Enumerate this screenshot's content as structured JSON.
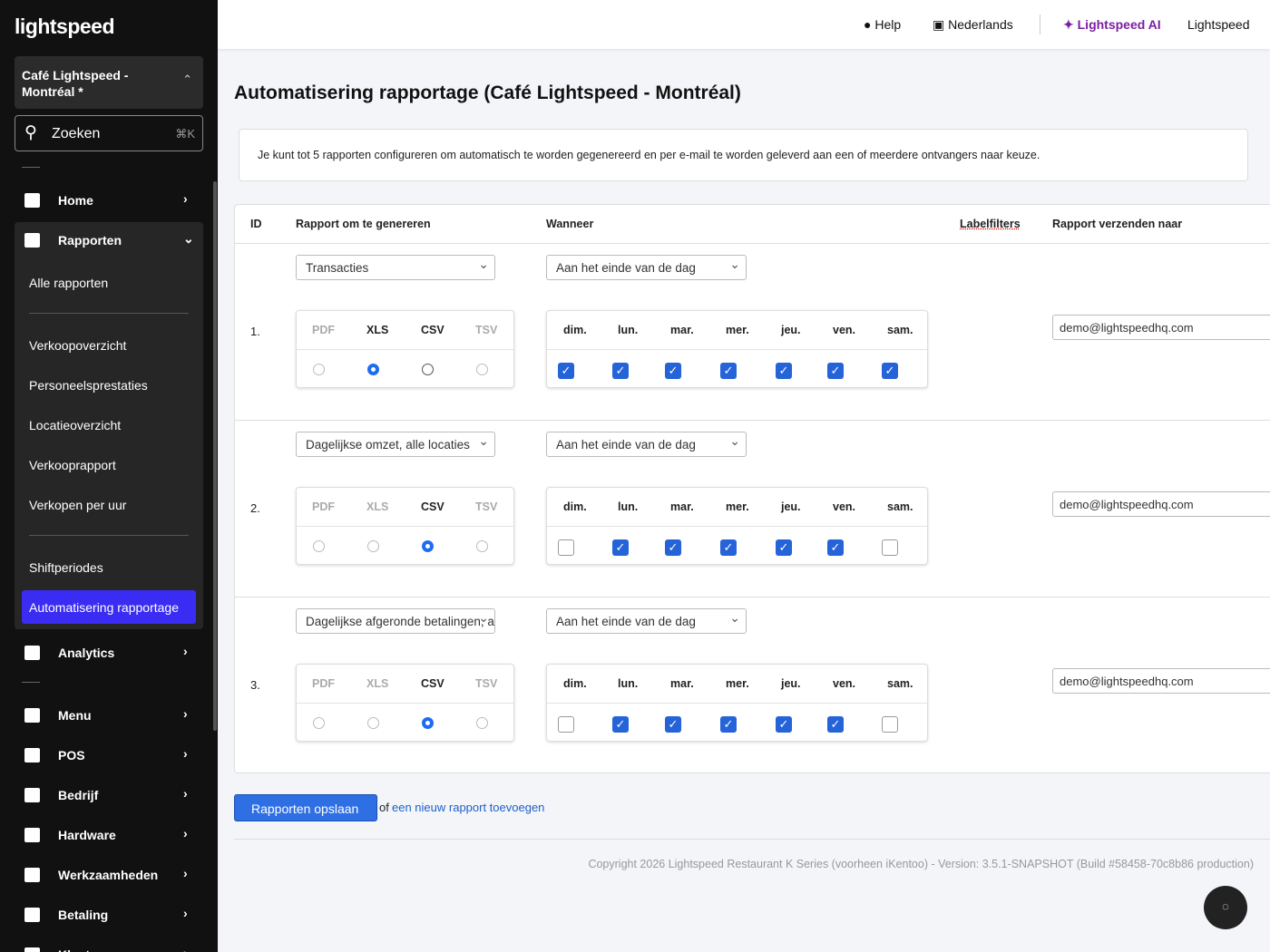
{
  "header": {
    "help": "Help",
    "language": "Nederlands",
    "ai": "Lightspeed AI",
    "account": "Lightspeed"
  },
  "sidebar": {
    "brand": "lightspeed",
    "location": "Café Lightspeed - Montréal *",
    "search": "Zoeken",
    "shortcut": "⌘K",
    "nav": [
      [
        {
          "label": "Home"
        },
        {
          "label": "Rapporten",
          "expanded": true,
          "children": [
            [
              {
                "label": "Alle rapporten"
              }
            ],
            [
              {
                "label": "Verkoopoverzicht"
              },
              {
                "label": "Personeelsprestaties"
              },
              {
                "label": "Locatieoverzicht"
              },
              {
                "label": "Verkooprapport"
              },
              {
                "label": "Verkopen per uur"
              }
            ],
            [
              {
                "label": "Shiftperiodes"
              },
              {
                "label": "Automatisering rapportage",
                "active": true
              }
            ]
          ]
        },
        {
          "label": "Analytics"
        }
      ],
      [
        {
          "label": "Menu"
        },
        {
          "label": "POS"
        },
        {
          "label": "Bedrijf"
        },
        {
          "label": "Hardware"
        },
        {
          "label": "Werkzaamheden"
        },
        {
          "label": "Betaling"
        },
        {
          "label": "Klanten"
        }
      ]
    ]
  },
  "page": {
    "title": "Automatisering rapportage (Café Lightspeed - Montréal)",
    "info": "Je kunt tot 5 rapporten configureren om automatisch te worden gegenereerd en per e-mail te worden geleverd aan een of meerdere ontvangers naar keuze.",
    "columns": [
      "ID",
      "Rapport om te genereren",
      "Wanneer",
      "Labelfilters",
      "Rapport verzenden naar"
    ],
    "formats": [
      "PDF",
      "XLS",
      "CSV",
      "TSV"
    ],
    "days": [
      "dim.",
      "lun.",
      "mar.",
      "mer.",
      "jeu.",
      "ven.",
      "sam."
    ],
    "rows": [
      {
        "id": "1.",
        "report": "Transacties",
        "when": "Aan het einde van de dag",
        "format": "XLS",
        "days": [
          true,
          true,
          true,
          true,
          true,
          true,
          true
        ],
        "email": "demo@lightspeedhq.com"
      },
      {
        "id": "2.",
        "report": "Dagelijkse omzet, alle locaties",
        "when": "Aan het einde van de dag",
        "format": "CSV",
        "days": [
          false,
          true,
          true,
          true,
          true,
          true,
          false
        ],
        "email": "demo@lightspeedhq.com"
      },
      {
        "id": "3.",
        "report": "Dagelijkse afgeronde betalingen, al",
        "when": "Aan het einde van de dag",
        "format": "CSV",
        "days": [
          false,
          true,
          true,
          true,
          true,
          true,
          false
        ],
        "email": "demo@lightspeedhq.com"
      }
    ],
    "save": "Rapporten opslaan",
    "or": "of",
    "add": "een nieuw rapport toevoegen",
    "copyright": "Copyright 2026 Lightspeed Restaurant K Series (voorheen iKentoo) - Version: 3.5.1-SNAPSHOT (Build #58458-70c8b86 production)"
  }
}
